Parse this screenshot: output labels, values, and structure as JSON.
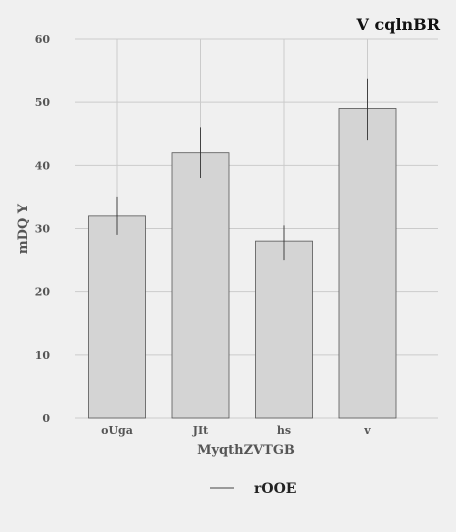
{
  "chart_data": {
    "type": "bar",
    "title": "V cqlnBR",
    "xlabel": "MyqthZVTGB",
    "ylabel": "mDQ Y",
    "categories": [
      "oUga",
      "JIt",
      "hs",
      "v"
    ],
    "series": [
      {
        "name": "rOOE",
        "values": [
          32,
          42,
          28,
          49
        ],
        "error_low": [
          29,
          38,
          25,
          44
        ],
        "error_high": [
          35,
          46,
          30.5,
          53.7
        ]
      }
    ],
    "ylim": [
      0,
      60
    ],
    "yticks": [
      0,
      10,
      20,
      30,
      40,
      50,
      60
    ],
    "grid": true,
    "legend_position": "bottom-center",
    "colors": {
      "bar_fill": "#d4d4d4",
      "bar_stroke": "#555555",
      "error_bar": "#333333",
      "grid": "#cbcbcb",
      "background": "#f0f0f0"
    }
  }
}
